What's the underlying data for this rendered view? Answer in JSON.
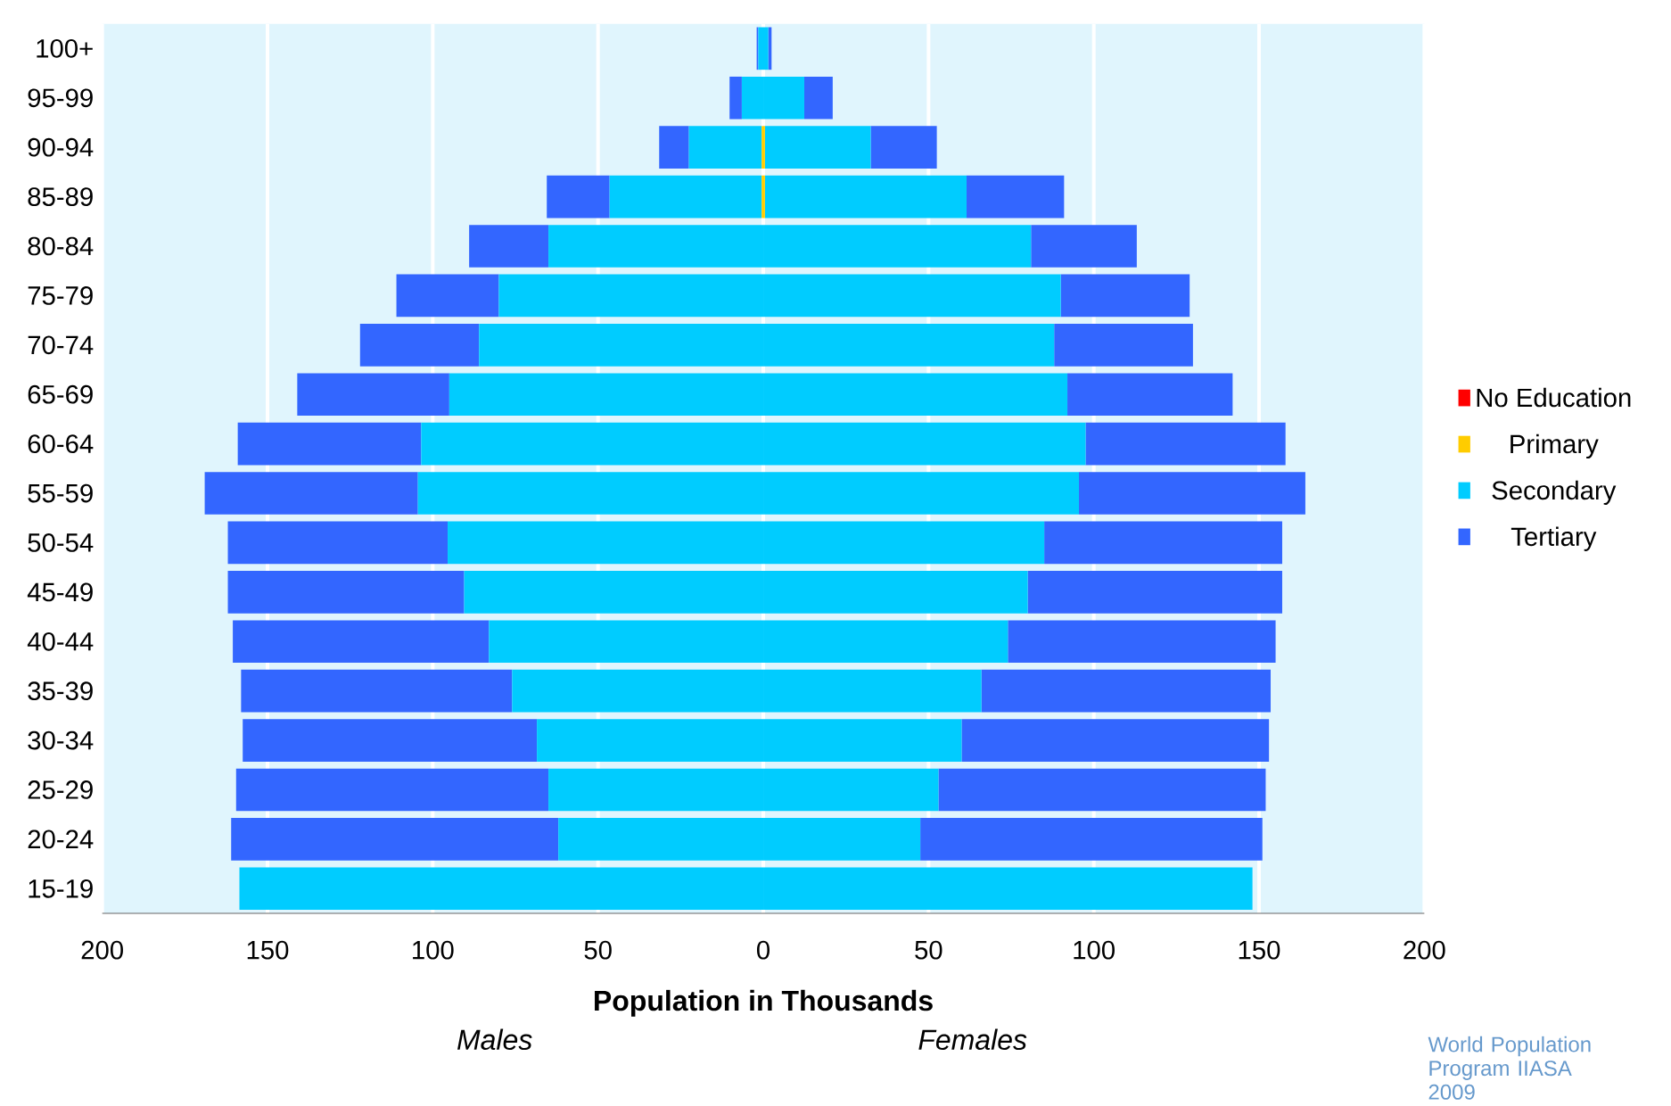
{
  "chart_data": {
    "type": "bar",
    "orientation": "horizontal",
    "stacked": true,
    "xlabel": "Population in Thousands",
    "categories": [
      "100+",
      "95-99",
      "90-94",
      "85-89",
      "80-84",
      "75-79",
      "70-74",
      "65-69",
      "60-64",
      "55-59",
      "50-54",
      "45-49",
      "40-44",
      "35-39",
      "30-34",
      "25-29",
      "20-24",
      "15-19"
    ],
    "series": [
      {
        "color": "#ff0000",
        "values": [
          0,
          0,
          0,
          0,
          0,
          0,
          0,
          0,
          0,
          0,
          0,
          0,
          0,
          0,
          0,
          0,
          0,
          0
        ]
      },
      {
        "color": "#ffcc00",
        "values": [
          0,
          0,
          -0.5,
          -0.5,
          0,
          0,
          0,
          0,
          0,
          0,
          0,
          0,
          0,
          0,
          0,
          0,
          0,
          0
        ]
      },
      {
        "color": "#00ccff",
        "values": [
          -1.5,
          -6.5,
          -22,
          -46,
          -65,
          -80,
          -86,
          -95,
          -103.5,
          -104.5,
          -95.5,
          -90.5,
          -83,
          -76,
          -68.5,
          -65,
          -62,
          -158.5
        ]
      },
      {
        "color": "#3366ff",
        "values": [
          -0.5,
          -3.7,
          -9,
          -19,
          -24,
          -31,
          -36,
          -46,
          -55.5,
          -64.5,
          -66.5,
          -71.5,
          -77.5,
          -82,
          -89,
          -94.5,
          -99,
          0
        ]
      },
      {
        "name": "No Education",
        "color": "#ff0000",
        "values": [
          0,
          0,
          0,
          0,
          0,
          0,
          0,
          0,
          0,
          0,
          0,
          0,
          0,
          0,
          0,
          0,
          0,
          0
        ]
      },
      {
        "name": "Primary",
        "color": "#ffcc00",
        "values": [
          0,
          0,
          0.5,
          0.5,
          0,
          0,
          0,
          0,
          0,
          0,
          0,
          0,
          0,
          0,
          0,
          0,
          0,
          0
        ]
      },
      {
        "name": "Secondary",
        "color": "#00ccff",
        "values": [
          1.5,
          12.4,
          32,
          61,
          81,
          90,
          88,
          92,
          97.5,
          95.5,
          85,
          80,
          74,
          66,
          60,
          53,
          47.5,
          148
        ]
      },
      {
        "name": "Tertiary",
        "color": "#3366ff",
        "values": [
          1,
          8.6,
          20,
          29.5,
          32,
          39,
          42,
          50,
          60.5,
          68.5,
          72,
          77,
          81,
          87.5,
          93,
          99,
          103.5,
          0
        ]
      }
    ],
    "xlim": [
      -200,
      200
    ],
    "xticks": [
      {
        "value": -200,
        "label": "200"
      },
      {
        "value": -150,
        "label": "150"
      },
      {
        "value": -100,
        "label": "100"
      },
      {
        "value": -50,
        "label": "50"
      },
      0,
      50,
      100,
      150,
      200
    ],
    "grid": "x",
    "legend": "right",
    "annotations": [
      "Males",
      "Females",
      "World Population Program IIASA 2009"
    ]
  }
}
